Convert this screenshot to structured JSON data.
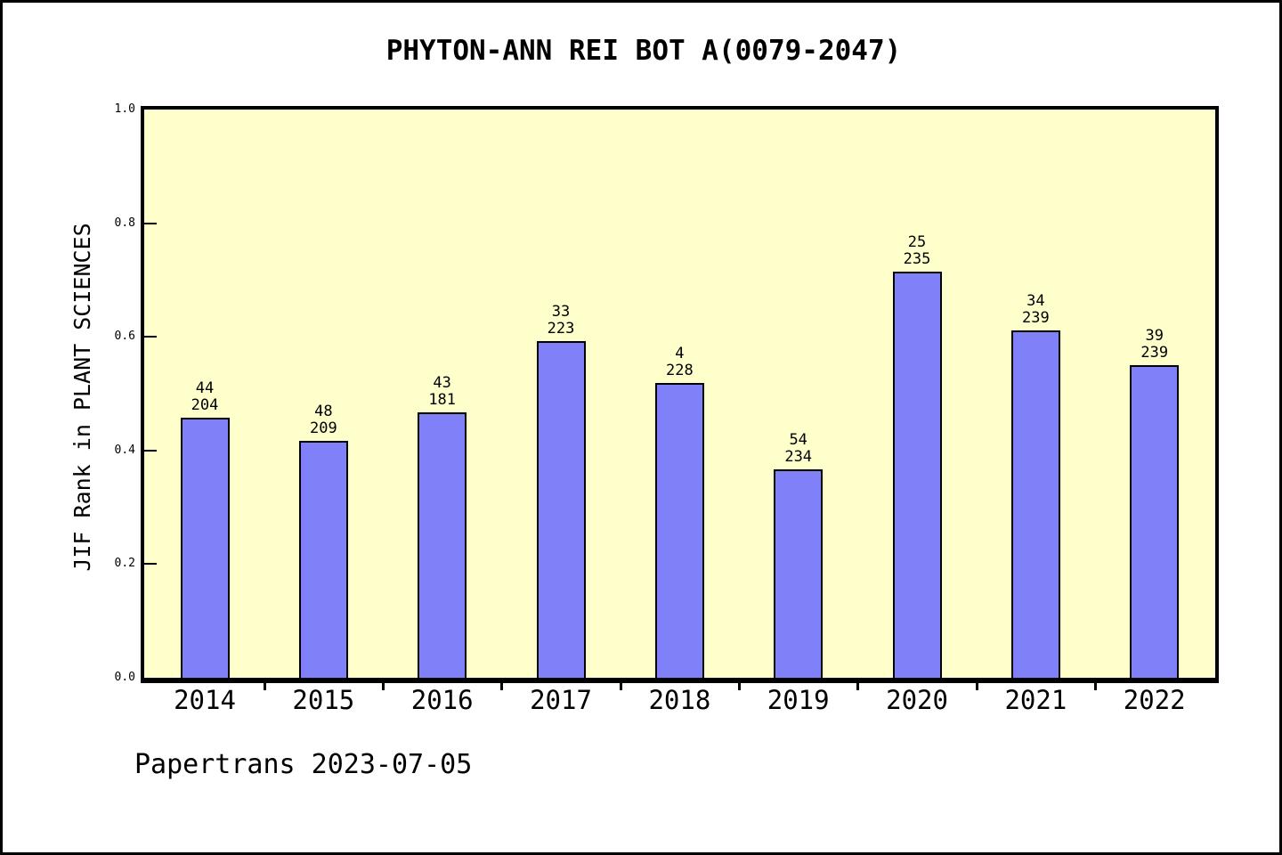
{
  "footer": "Papertrans 2023-07-05",
  "chart_data": {
    "type": "bar",
    "title": "PHYTON-ANN REI BOT A(0079-2047)",
    "xlabel": "",
    "ylabel": "JIF Rank in PLANT SCIENCES",
    "ylim": [
      0.0,
      1.0
    ],
    "yticks": [
      "0.0",
      "0.2",
      "0.4",
      "0.6",
      "0.8",
      "1.0"
    ],
    "grid": "off",
    "legend": "none",
    "categories": [
      "2014",
      "2015",
      "2016",
      "2017",
      "2018",
      "2019",
      "2020",
      "2021",
      "2022"
    ],
    "bars": [
      {
        "year": "2014",
        "rank": "44",
        "total": "204",
        "value": 0.458
      },
      {
        "year": "2015",
        "rank": "48",
        "total": "209",
        "value": 0.417
      },
      {
        "year": "2016",
        "rank": "43",
        "total": "181",
        "value": 0.467
      },
      {
        "year": "2017",
        "rank": "33",
        "total": "223",
        "value": 0.593
      },
      {
        "year": "2018",
        "rank": "4",
        "total": "228",
        "value": 0.519
      },
      {
        "year": "2019",
        "rank": "54",
        "total": "234",
        "value": 0.366
      },
      {
        "year": "2020",
        "rank": "25",
        "total": "235",
        "value": 0.715
      },
      {
        "year": "2021",
        "rank": "34",
        "total": "239",
        "value": 0.612
      },
      {
        "year": "2022",
        "rank": "39",
        "total": "239",
        "value": 0.55
      }
    ],
    "colors": {
      "bar_fill": "#8080f8",
      "bar_border": "#000000",
      "plot_background": "#ffffcc",
      "page_background": "#ffffff",
      "frame": "#000000",
      "text": "#000000"
    }
  }
}
